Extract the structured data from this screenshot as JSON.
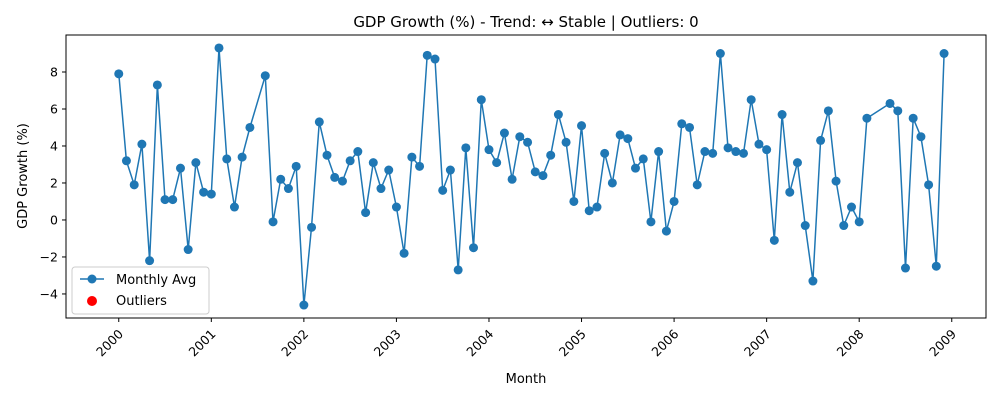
{
  "chart_data": {
    "type": "line",
    "title": "GDP Growth (%) - Trend: ↔ Stable | Outliers: 0",
    "xlabel": "Month",
    "ylabel": "GDP Growth (%)",
    "xlim": [
      1999.43,
      2009.37
    ],
    "ylim": [
      -5.3,
      10.0
    ],
    "yticks": [
      -4,
      -2,
      0,
      2,
      4,
      6,
      8
    ],
    "xticks": [
      2000,
      2001,
      2002,
      2003,
      2004,
      2005,
      2006,
      2007,
      2008,
      2009
    ],
    "grid": false,
    "legend": {
      "placement": "lower-left",
      "entries": [
        "Monthly Avg",
        "Outliers"
      ]
    },
    "colors": {
      "series": "#1f77b4",
      "outliers": "#ff0000"
    },
    "series": [
      {
        "name": "Monthly Avg",
        "x": [
          2000.0,
          2000.083,
          2000.167,
          2000.25,
          2000.333,
          2000.417,
          2000.5,
          2000.583,
          2000.667,
          2000.75,
          2000.833,
          2000.917,
          2001.0,
          2001.083,
          2001.167,
          2001.25,
          2001.333,
          2001.417,
          2001.583,
          2001.667,
          2001.75,
          2001.833,
          2001.917,
          2002.0,
          2002.083,
          2002.167,
          2002.25,
          2002.333,
          2002.417,
          2002.5,
          2002.583,
          2002.667,
          2002.75,
          2002.833,
          2002.917,
          2003.0,
          2003.083,
          2003.167,
          2003.25,
          2003.333,
          2003.417,
          2003.5,
          2003.583,
          2003.667,
          2003.75,
          2003.833,
          2003.917,
          2004.0,
          2004.083,
          2004.167,
          2004.25,
          2004.333,
          2004.417,
          2004.5,
          2004.583,
          2004.667,
          2004.75,
          2004.833,
          2004.917,
          2005.0,
          2005.083,
          2005.167,
          2005.25,
          2005.333,
          2005.417,
          2005.5,
          2005.583,
          2005.667,
          2005.75,
          2005.833,
          2005.917,
          2006.0,
          2006.083,
          2006.167,
          2006.25,
          2006.333,
          2006.417,
          2006.5,
          2006.583,
          2006.667,
          2006.75,
          2006.833,
          2006.917,
          2007.0,
          2007.083,
          2007.167,
          2007.25,
          2007.333,
          2007.417,
          2007.5,
          2007.583,
          2007.667,
          2007.75,
          2007.833,
          2007.917,
          2008.0,
          2008.083,
          2008.333,
          2008.417,
          2008.5,
          2008.583,
          2008.667,
          2008.75,
          2008.833,
          2008.917
        ],
        "y": [
          7.9,
          3.2,
          1.9,
          4.1,
          -2.2,
          7.3,
          1.1,
          1.1,
          2.8,
          -1.6,
          3.1,
          1.5,
          1.4,
          9.3,
          3.3,
          0.7,
          3.4,
          5.0,
          7.8,
          -0.1,
          2.2,
          1.7,
          2.9,
          -4.6,
          -0.4,
          5.3,
          3.5,
          2.3,
          2.1,
          3.2,
          3.7,
          0.4,
          3.1,
          1.7,
          2.7,
          0.7,
          -1.8,
          3.4,
          2.9,
          8.9,
          8.7,
          1.6,
          2.7,
          -2.7,
          3.9,
          -1.5,
          6.5,
          3.8,
          3.1,
          4.7,
          2.2,
          4.5,
          4.2,
          2.6,
          2.4,
          3.5,
          5.7,
          4.2,
          1.0,
          5.1,
          0.5,
          0.7,
          3.6,
          2.0,
          4.6,
          4.4,
          2.8,
          3.3,
          -0.1,
          3.7,
          -0.6,
          1.0,
          5.2,
          5.0,
          1.9,
          3.7,
          3.6,
          9.0,
          3.9,
          3.7,
          3.6,
          6.5,
          4.1,
          3.8,
          -1.1,
          5.7,
          1.5,
          3.1,
          -0.3,
          -3.3,
          4.3,
          5.9,
          2.1,
          -0.3,
          0.7,
          -0.1,
          5.5,
          6.3,
          5.9,
          -2.6,
          5.5,
          4.5,
          1.9,
          -2.5,
          9.0
        ]
      },
      {
        "name": "Outliers",
        "x": [],
        "y": []
      }
    ]
  }
}
